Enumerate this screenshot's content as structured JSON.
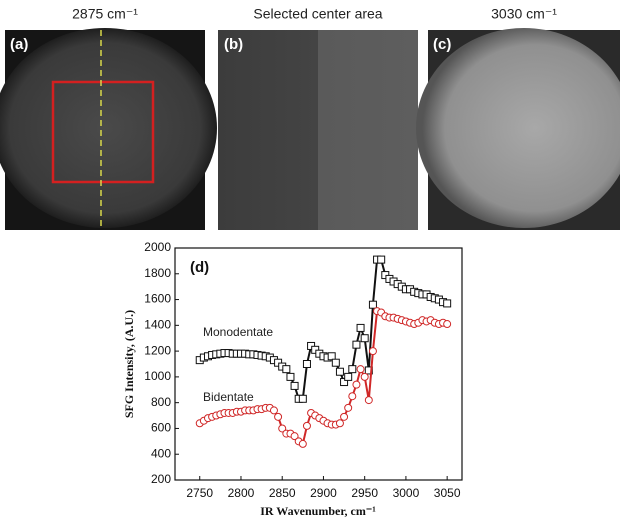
{
  "panels": [
    {
      "title": "2875 cm⁻¹",
      "label": "(a)"
    },
    {
      "title": "Selected center area",
      "label": "(b)"
    },
    {
      "title": "3030 cm⁻¹",
      "label": "(c)"
    }
  ],
  "chart_data": {
    "type": "line",
    "panel_label": "(d)",
    "xlabel": "IR Wavenumber, cm⁻¹",
    "ylabel": "SFG Intensity, (A.U.)",
    "x": [
      2750,
      2755,
      2760,
      2765,
      2770,
      2775,
      2780,
      2785,
      2790,
      2795,
      2800,
      2805,
      2810,
      2815,
      2820,
      2825,
      2830,
      2835,
      2840,
      2845,
      2850,
      2855,
      2860,
      2865,
      2870,
      2875,
      2880,
      2885,
      2890,
      2895,
      2900,
      2905,
      2910,
      2915,
      2920,
      2925,
      2930,
      2935,
      2940,
      2945,
      2950,
      2955,
      2960,
      2965,
      2970,
      2975,
      2980,
      2985,
      2990,
      2995,
      3000,
      3005,
      3010,
      3015,
      3020,
      3025,
      3030,
      3035,
      3040,
      3045,
      3050
    ],
    "series": [
      {
        "name": "Monodentate",
        "color": "#111111",
        "marker": "square",
        "values": [
          1130,
          1150,
          1160,
          1170,
          1175,
          1180,
          1185,
          1185,
          1180,
          1180,
          1180,
          1180,
          1175,
          1175,
          1170,
          1165,
          1160,
          1150,
          1130,
          1110,
          1080,
          1060,
          1000,
          930,
          830,
          830,
          1100,
          1240,
          1210,
          1180,
          1160,
          1150,
          1160,
          1110,
          1040,
          960,
          1000,
          1060,
          1250,
          1380,
          1300,
          1050,
          1560,
          1910,
          1910,
          1790,
          1760,
          1740,
          1720,
          1700,
          1680,
          1680,
          1660,
          1650,
          1640,
          1640,
          1620,
          1610,
          1600,
          1580,
          1570
        ]
      },
      {
        "name": "Bidentate",
        "color": "#d02828",
        "marker": "circle",
        "values": [
          640,
          660,
          680,
          690,
          700,
          710,
          720,
          720,
          720,
          730,
          730,
          740,
          740,
          740,
          750,
          750,
          760,
          760,
          740,
          690,
          600,
          560,
          560,
          540,
          500,
          480,
          620,
          720,
          700,
          680,
          660,
          640,
          630,
          630,
          640,
          690,
          760,
          850,
          940,
          1060,
          1000,
          820,
          1200,
          1510,
          1500,
          1470,
          1460,
          1460,
          1450,
          1440,
          1430,
          1420,
          1410,
          1420,
          1440,
          1430,
          1440,
          1420,
          1410,
          1420,
          1410
        ]
      }
    ],
    "xlim": [
      2720,
      3068
    ],
    "ylim": [
      200,
      2000
    ],
    "xticks": [
      2750,
      2800,
      2850,
      2900,
      2950,
      3000,
      3050
    ],
    "yticks": [
      200,
      400,
      600,
      800,
      1000,
      1200,
      1400,
      1600,
      1800,
      2000
    ]
  }
}
